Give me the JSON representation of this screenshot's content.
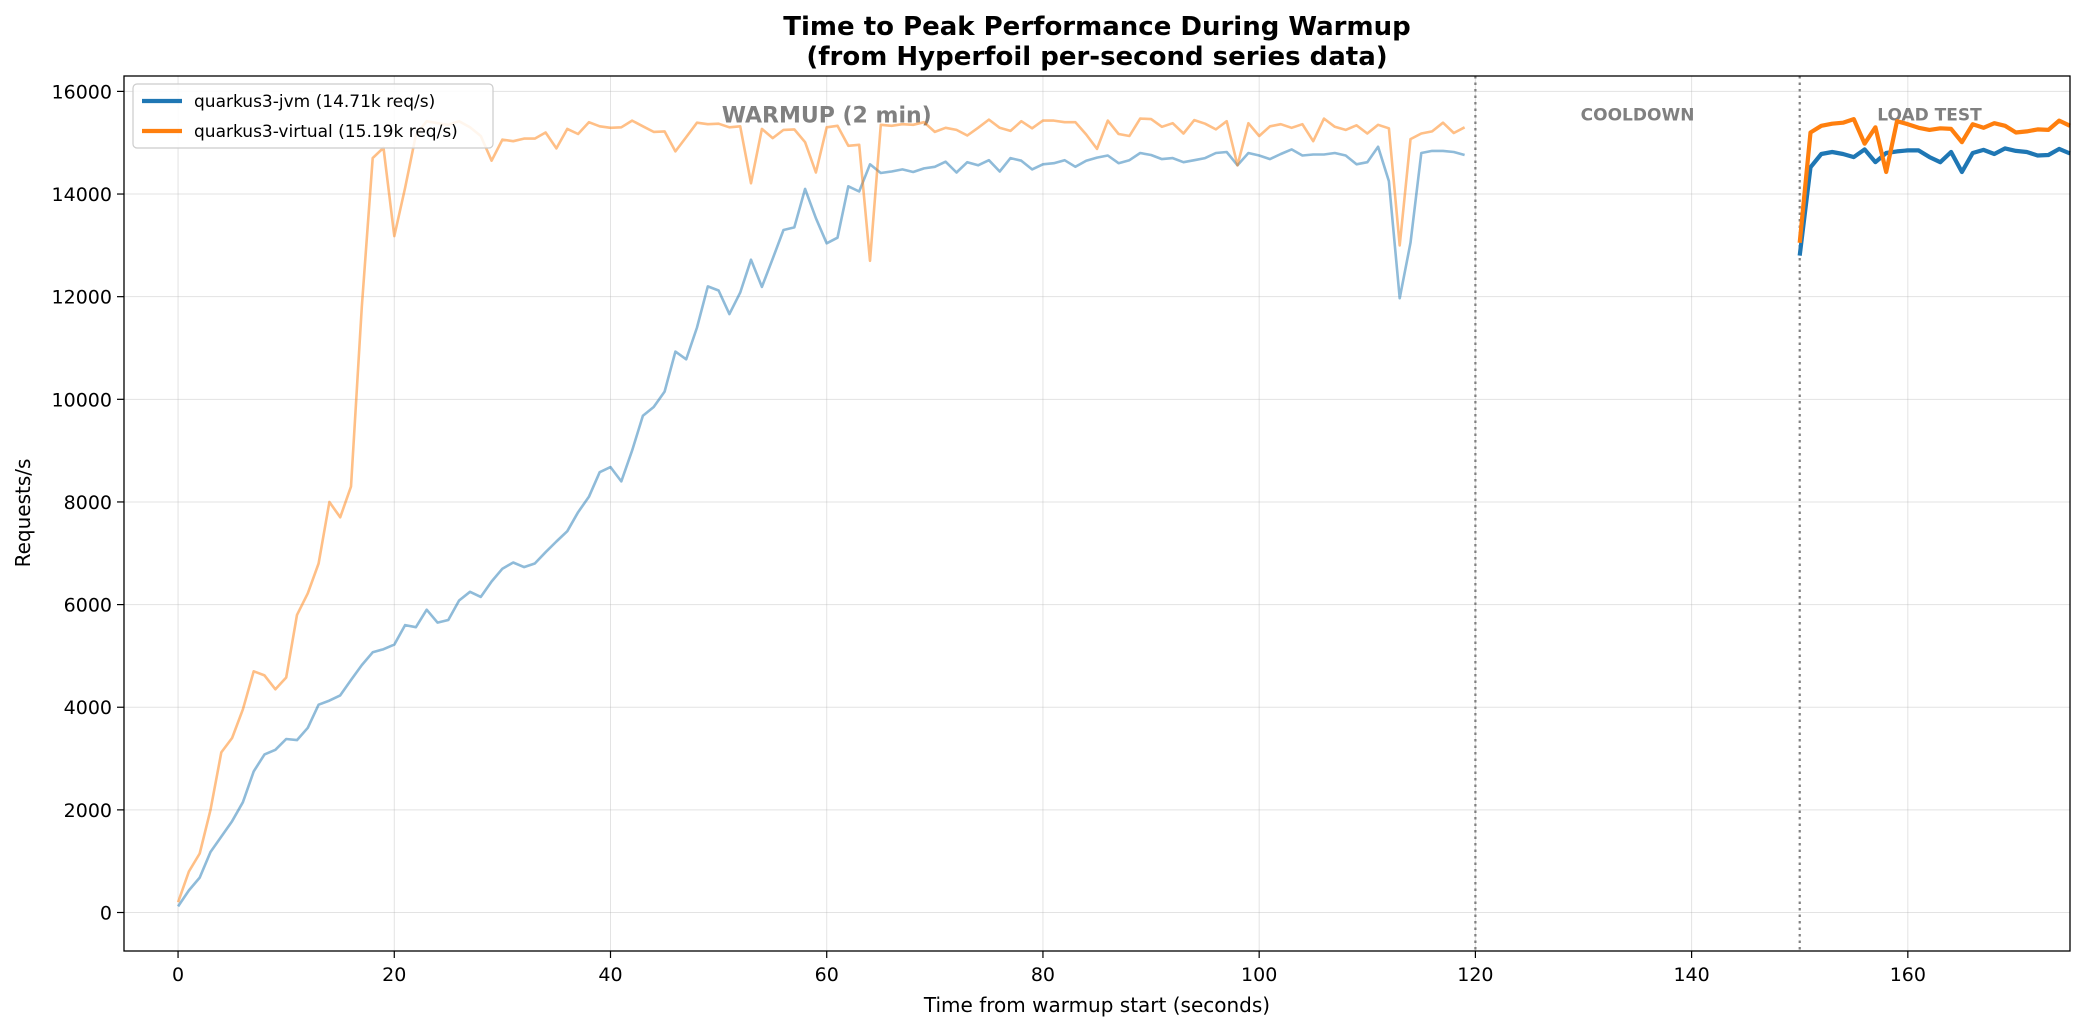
{
  "chart_data": {
    "type": "line",
    "title": "Time to Peak Performance During Warmup",
    "subtitle": "(from Hyperfoil per-second series data)",
    "xlabel": "Time from warmup start (seconds)",
    "ylabel": "Requests/s",
    "xlim": [
      -5,
      175
    ],
    "ylim": [
      -750,
      16300
    ],
    "xticks": [
      0,
      20,
      40,
      60,
      80,
      100,
      120,
      140,
      160
    ],
    "yticks": [
      0,
      2000,
      4000,
      6000,
      8000,
      10000,
      12000,
      14000,
      16000
    ],
    "grid": true,
    "legend_position": "top-left",
    "phases": [
      {
        "label": "WARMUP (2 min)",
        "x": 60,
        "y": 15550,
        "size": "large"
      },
      {
        "label": "COOLDOWN",
        "x": 135,
        "y": 15550,
        "size": "small"
      },
      {
        "label": "LOAD TEST",
        "x": 162,
        "y": 15550,
        "size": "small"
      }
    ],
    "phase_boundaries": [
      120,
      150
    ],
    "series": [
      {
        "name": "quarkus3-jvm (14.71k req/s)",
        "color": "#1f77b4",
        "warmup": [
          120,
          430,
          680,
          1180,
          1480,
          1780,
          2150,
          2750,
          3080,
          3170,
          3380,
          3360,
          3600,
          4050,
          4130,
          4230,
          4530,
          4820,
          5070,
          5130,
          5220,
          5600,
          5560,
          5900,
          5650,
          5700,
          6080,
          6250,
          6150,
          6450,
          6700,
          6820,
          6730,
          6800,
          7020,
          7230,
          7430,
          7800,
          8100,
          8580,
          8680,
          8400,
          9000,
          9680,
          9850,
          10150,
          10930,
          10780,
          11400,
          12200,
          12120,
          11660,
          12080,
          12720,
          12190,
          12740,
          13300,
          13350,
          14100,
          13530,
          13040,
          13150,
          14150,
          14050,
          14580,
          14410,
          14440,
          14480,
          14430,
          14500,
          14530,
          14630,
          14420,
          14620,
          14560,
          14660,
          14440,
          14700,
          14650,
          14480,
          14580,
          14600,
          14660,
          14530,
          14650,
          14710,
          14750,
          14600,
          14660,
          14800,
          14760,
          14680,
          14700,
          14620,
          14660,
          14700,
          14800,
          14820,
          14560,
          14800,
          14750,
          14680,
          14780,
          14870,
          14750,
          14770,
          14770,
          14800,
          14750,
          14580,
          14620,
          14920,
          14250,
          11970,
          13050,
          14800,
          14840,
          14840,
          14820,
          14760
        ],
        "loadtest_x": [
          150,
          151,
          152,
          153,
          154,
          155,
          156,
          157,
          158,
          159,
          160,
          161,
          162,
          163,
          164,
          165,
          166,
          167,
          168,
          169,
          170,
          171,
          172,
          173,
          174,
          175
        ],
        "loadtest": [
          12800,
          14520,
          14780,
          14820,
          14780,
          14720,
          14870,
          14620,
          14800,
          14830,
          14850,
          14850,
          14720,
          14620,
          14820,
          14430,
          14800,
          14860,
          14780,
          14890,
          14840,
          14820,
          14750,
          14760,
          14880,
          14790
        ]
      },
      {
        "name": "quarkus3-virtual (15.19k req/s)",
        "color": "#ff7f0e",
        "warmup": [
          200,
          800,
          1150,
          2000,
          3120,
          3400,
          3960,
          4700,
          4620,
          4350,
          4580,
          5800,
          6220,
          6800,
          8000,
          7700,
          8300,
          11800,
          14700,
          14900,
          13180,
          14120,
          15150,
          15420,
          15380,
          15350,
          15420,
          15300,
          15130,
          14650,
          15060,
          15030,
          15080,
          15080,
          15200,
          14890,
          15270,
          15170,
          15400,
          15320,
          15290,
          15300,
          15430,
          15320,
          15210,
          15220,
          14830,
          15110,
          15390,
          15360,
          15370,
          15300,
          15320,
          14210,
          15270,
          15090,
          15250,
          15260,
          15010,
          14420,
          15300,
          15330,
          14940,
          14960,
          12700,
          15350,
          15330,
          15360,
          15350,
          15400,
          15210,
          15290,
          15250,
          15140,
          15290,
          15450,
          15290,
          15230,
          15420,
          15280,
          15430,
          15430,
          15400,
          15400,
          15160,
          14880,
          15430,
          15170,
          15130,
          15470,
          15460,
          15310,
          15380,
          15180,
          15440,
          15370,
          15260,
          15420,
          14560,
          15380,
          15130,
          15320,
          15360,
          15290,
          15360,
          15030,
          15470,
          15310,
          15250,
          15340,
          15180,
          15350,
          15280,
          13000,
          15070,
          15180,
          15220,
          15390,
          15190,
          15300
        ],
        "loadtest_x": [
          150,
          151,
          152,
          153,
          154,
          155,
          156,
          157,
          158,
          159,
          160,
          161,
          162,
          163,
          164,
          165,
          166,
          167,
          168,
          169,
          170,
          171,
          172,
          173,
          174,
          175
        ],
        "loadtest": [
          13050,
          15200,
          15330,
          15370,
          15390,
          15460,
          14980,
          15300,
          14430,
          15420,
          15360,
          15290,
          15250,
          15280,
          15270,
          15010,
          15360,
          15290,
          15380,
          15330,
          15200,
          15220,
          15260,
          15250,
          15430,
          15330
        ]
      }
    ]
  }
}
